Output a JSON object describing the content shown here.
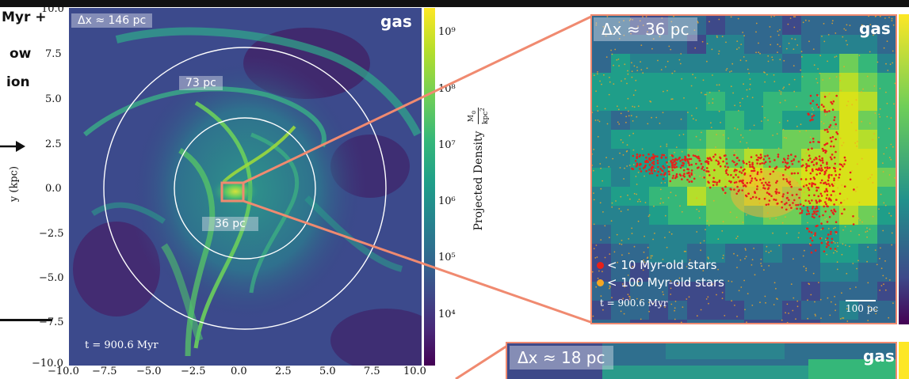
{
  "left_text": {
    "line1": "Myr +",
    "line2": "ow",
    "line3": "ion"
  },
  "main_panel": {
    "resolution_label": "Δx ≈ 146 pc",
    "gas_label": "gas",
    "time_label": "t = 900.6 Myr",
    "ring_label_outer": "73 pc",
    "ring_label_inner": "36 pc",
    "ylabel": "y (kpc)",
    "y_ticks": [
      "10.0",
      "7.5",
      "5.0",
      "2.5",
      "0.0",
      "−2.5",
      "−5.0",
      "−7.5",
      "−10.0"
    ],
    "x_ticks": [
      "−10.0",
      "−7.5",
      "−5.0",
      "−2.5",
      "0.0",
      "2.5",
      "5.0",
      "7.5",
      "10.0"
    ]
  },
  "colorbar": {
    "ticks": [
      "10⁹",
      "10⁸",
      "10⁷",
      "10⁶",
      "10⁵",
      "10⁴"
    ],
    "label": "Projected Density",
    "unit_num": "M",
    "unit_den": "kpc",
    "colors": [
      "#fde725",
      "#b5de2b",
      "#6ece58",
      "#35b779",
      "#1f9e89",
      "#26828e",
      "#31688e",
      "#3e4989",
      "#482878",
      "#440154"
    ]
  },
  "zoom_panel_1": {
    "resolution_label": "Δx ≈ 36 pc",
    "gas_label": "gas",
    "legend": [
      {
        "label": "< 10 Myr-old stars",
        "color": "#e8201a"
      },
      {
        "label": "< 100 Myr-old stars",
        "color": "#f5a623"
      }
    ],
    "time_label": "t = 900.6 Myr",
    "scale_label": "100 pc"
  },
  "zoom_panel_2": {
    "resolution_label": "Δx ≈ 18 pc",
    "gas_label": "gas"
  },
  "accent_colors": {
    "zoom_box": "#f08a70",
    "ring": "#ffffff",
    "young_star": "#e8201a",
    "old_star": "#f5a623"
  }
}
